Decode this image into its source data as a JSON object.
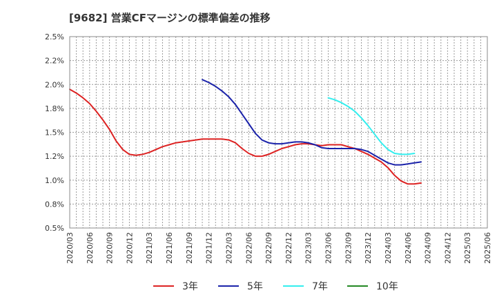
{
  "chart_data": {
    "type": "line",
    "title": "[9682]  営業CFマージンの標準偏差の推移",
    "xlabel": "",
    "ylabel": "",
    "ylim": [
      0.5,
      2.5
    ],
    "y_ticks": [
      "2.5%",
      "2.2%",
      "2.0%",
      "1.8%",
      "1.5%",
      "1.2%",
      "1.0%",
      "0.8%",
      "0.5%"
    ],
    "x_ticks": [
      "2020/03",
      "2020/06",
      "2020/09",
      "2020/12",
      "2021/03",
      "2021/06",
      "2021/09",
      "2021/12",
      "2022/03",
      "2022/06",
      "2022/09",
      "2022/12",
      "2023/03",
      "2023/06",
      "2023/09",
      "2023/12",
      "2024/03",
      "2024/06",
      "2024/09",
      "2024/12",
      "2025/03",
      "2025/06"
    ],
    "grid": true,
    "legend_position": "bottom",
    "series": [
      {
        "name": "3年",
        "color": "#dd2222",
        "start_index": 0,
        "values": [
          1.95,
          1.91,
          1.86,
          1.8,
          1.72,
          1.63,
          1.53,
          1.41,
          1.32,
          1.27,
          1.26,
          1.27,
          1.29,
          1.32,
          1.35,
          1.37,
          1.39,
          1.4,
          1.41,
          1.42,
          1.43,
          1.43,
          1.43,
          1.43,
          1.42,
          1.39,
          1.33,
          1.28,
          1.25,
          1.25,
          1.27,
          1.3,
          1.33,
          1.35,
          1.37,
          1.38,
          1.38,
          1.37,
          1.36,
          1.37,
          1.37,
          1.37,
          1.35,
          1.33,
          1.3,
          1.27,
          1.23,
          1.19,
          1.13,
          1.05,
          0.99,
          0.96,
          0.96,
          0.97
        ]
      },
      {
        "name": "5年",
        "color": "#1a22aa",
        "start_index": 20,
        "values": [
          2.05,
          2.02,
          1.98,
          1.93,
          1.87,
          1.79,
          1.69,
          1.59,
          1.49,
          1.42,
          1.39,
          1.38,
          1.38,
          1.39,
          1.4,
          1.4,
          1.39,
          1.37,
          1.34,
          1.33,
          1.33,
          1.33,
          1.33,
          1.33,
          1.32,
          1.3,
          1.26,
          1.22,
          1.18,
          1.16,
          1.16,
          1.17,
          1.18,
          1.19
        ]
      },
      {
        "name": "7年",
        "color": "#33eeee",
        "start_index": 39,
        "values": [
          1.86,
          1.84,
          1.81,
          1.77,
          1.72,
          1.65,
          1.57,
          1.48,
          1.39,
          1.32,
          1.28,
          1.27,
          1.27,
          1.28
        ]
      },
      {
        "name": "10年",
        "color": "#228822",
        "start_index": 0,
        "values": []
      }
    ]
  }
}
